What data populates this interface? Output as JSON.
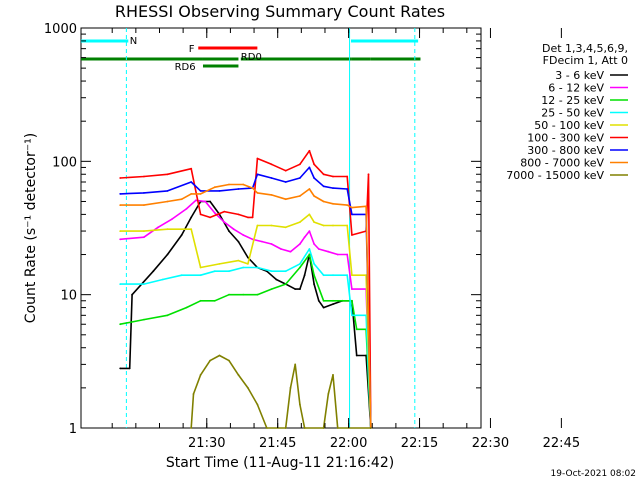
{
  "chart_data": {
    "type": "line",
    "title": "RHESSI Observing Summary Count Rates",
    "xlabel": "Start Time (11-Aug-11 21:16:42)",
    "ylabel": "Count Rate (s⁻¹ detector⁻¹)",
    "yscale": "log",
    "ylim": [
      1,
      1000
    ],
    "xlim_minutes": [
      -13.3,
      71.3
    ],
    "x_tick_labels": [
      "21:30",
      "21:45",
      "22:00",
      "22:15",
      "22:30",
      "22:45"
    ],
    "y_tick_labels": [
      "1",
      "10",
      "100",
      "1000"
    ],
    "timestamp": "19-Oct-2021 08:02",
    "legend": {
      "position": "top-right",
      "header": [
        "Det 1,3,4,5,6,9,",
        "FDecim 1, Att 0"
      ],
      "entries": [
        {
          "label": "3 - 6 keV",
          "color": "#000000"
        },
        {
          "label": "6 - 12 keV",
          "color": "#ff00ff"
        },
        {
          "label": "12 - 25 keV",
          "color": "#00e000"
        },
        {
          "label": "25 - 50 keV",
          "color": "#00ffff"
        },
        {
          "label": "50 - 100 keV",
          "color": "#e0e000"
        },
        {
          "label": "100 - 300 keV",
          "color": "#ff0000"
        },
        {
          "label": "300 - 800 keV",
          "color": "#0000ff"
        },
        {
          "label": "800 - 7000 keV",
          "color": "#ff8000"
        },
        {
          "label": "7000 - 15000 keV",
          "color": "#808000"
        }
      ]
    },
    "annotations": {
      "night": {
        "label": "N",
        "color": "#00ffff",
        "segments": [
          [
            -13.3,
            -3.3
          ],
          [
            43.8,
            58.0
          ]
        ],
        "boundaries": [
          -3.7,
          43.5,
          57.3
        ]
      },
      "flare": {
        "label": "F",
        "color": "#ff0000",
        "segments": [
          [
            11.5,
            24.0
          ]
        ]
      },
      "rd0": {
        "label": "RD0",
        "color": "#008000",
        "segments": [
          [
            5.5,
            22.0
          ]
        ]
      },
      "rd6": {
        "label": "RD6",
        "color": "#008000",
        "segments": [
          [
            12.5,
            20.0
          ]
        ]
      },
      "saa": {
        "color": "#008000",
        "segments": [
          [
            -13.3,
            12.5
          ],
          [
            12.5,
            20.0
          ],
          [
            20.5,
            44.0
          ],
          [
            44.0,
            48.0
          ],
          [
            48.0,
            58.5
          ]
        ]
      }
    },
    "series": [
      {
        "name": "3 - 6 keV",
        "color": "#000000",
        "points": [
          [
            -13.3,
            null
          ],
          [
            -5,
            2.8
          ],
          [
            -3,
            2.8
          ],
          [
            -2.5,
            10
          ],
          [
            2,
            15
          ],
          [
            5,
            20
          ],
          [
            8,
            28
          ],
          [
            10,
            38
          ],
          [
            12,
            50
          ],
          [
            14,
            50
          ],
          [
            16,
            40
          ],
          [
            18,
            30
          ],
          [
            20,
            25
          ],
          [
            22,
            19
          ],
          [
            24,
            16
          ],
          [
            26,
            15
          ],
          [
            28,
            13
          ],
          [
            30,
            12
          ],
          [
            32,
            11
          ],
          [
            33,
            11
          ],
          [
            34,
            14
          ],
          [
            35,
            20
          ],
          [
            36,
            12
          ],
          [
            37,
            9
          ],
          [
            38,
            8
          ],
          [
            40,
            8.5
          ],
          [
            42,
            9
          ],
          [
            44,
            9
          ],
          [
            45,
            3.5
          ],
          [
            47,
            3.5
          ],
          [
            48,
            1
          ]
        ]
      },
      {
        "name": "6 - 12 keV",
        "color": "#ff00ff",
        "points": [
          [
            -5,
            26
          ],
          [
            0,
            27
          ],
          [
            3,
            32
          ],
          [
            6,
            37
          ],
          [
            9,
            44
          ],
          [
            11,
            51
          ],
          [
            13,
            50
          ],
          [
            15,
            41
          ],
          [
            17,
            35
          ],
          [
            19,
            31
          ],
          [
            21,
            28
          ],
          [
            23,
            26
          ],
          [
            25,
            25
          ],
          [
            27,
            24
          ],
          [
            29,
            22
          ],
          [
            31,
            21
          ],
          [
            33,
            24
          ],
          [
            34,
            27
          ],
          [
            35,
            30
          ],
          [
            36,
            24
          ],
          [
            37,
            22
          ],
          [
            39,
            21
          ],
          [
            41,
            20
          ],
          [
            43,
            20
          ],
          [
            44,
            11
          ],
          [
            47,
            11
          ],
          [
            48,
            1
          ]
        ]
      },
      {
        "name": "12 - 25 keV",
        "color": "#00e000",
        "points": [
          [
            -5,
            6
          ],
          [
            0,
            6.5
          ],
          [
            5,
            7
          ],
          [
            9,
            8
          ],
          [
            12,
            9
          ],
          [
            15,
            9
          ],
          [
            18,
            10
          ],
          [
            21,
            10
          ],
          [
            24,
            10
          ],
          [
            27,
            11
          ],
          [
            30,
            12
          ],
          [
            33,
            16
          ],
          [
            35,
            20
          ],
          [
            36,
            14
          ],
          [
            38,
            9
          ],
          [
            40,
            9
          ],
          [
            42,
            9
          ],
          [
            44,
            9
          ],
          [
            45,
            5.5
          ],
          [
            47,
            5.5
          ],
          [
            48,
            1
          ]
        ]
      },
      {
        "name": "25 - 50 keV",
        "color": "#00ffff",
        "points": [
          [
            -5,
            12
          ],
          [
            0,
            12
          ],
          [
            4,
            13
          ],
          [
            8,
            14
          ],
          [
            12,
            14
          ],
          [
            15,
            15
          ],
          [
            18,
            15
          ],
          [
            21,
            16
          ],
          [
            24,
            16
          ],
          [
            27,
            15
          ],
          [
            30,
            15
          ],
          [
            33,
            17
          ],
          [
            35,
            22
          ],
          [
            36,
            17
          ],
          [
            38,
            14
          ],
          [
            40,
            14
          ],
          [
            43,
            14
          ],
          [
            44,
            7
          ],
          [
            47,
            7
          ],
          [
            48,
            1
          ]
        ]
      },
      {
        "name": "50 - 100 keV",
        "color": "#e0e000",
        "points": [
          [
            -5,
            30
          ],
          [
            0,
            30
          ],
          [
            5,
            31
          ],
          [
            10,
            31
          ],
          [
            12,
            16
          ],
          [
            16,
            17
          ],
          [
            20,
            18
          ],
          [
            22,
            17
          ],
          [
            24,
            33
          ],
          [
            27,
            33
          ],
          [
            30,
            32
          ],
          [
            33,
            35
          ],
          [
            35,
            40
          ],
          [
            36,
            35
          ],
          [
            38,
            33
          ],
          [
            40,
            33
          ],
          [
            43,
            33
          ],
          [
            44,
            14
          ],
          [
            47,
            14
          ],
          [
            48,
            1
          ]
        ]
      },
      {
        "name": "100 - 300 keV",
        "color": "#ff0000",
        "points": [
          [
            -5,
            75
          ],
          [
            0,
            77
          ],
          [
            5,
            80
          ],
          [
            10,
            88
          ],
          [
            12,
            40
          ],
          [
            14,
            38
          ],
          [
            17,
            42
          ],
          [
            20,
            40
          ],
          [
            22,
            38
          ],
          [
            23,
            38
          ],
          [
            24,
            105
          ],
          [
            27,
            95
          ],
          [
            30,
            85
          ],
          [
            33,
            95
          ],
          [
            35,
            120
          ],
          [
            36,
            95
          ],
          [
            38,
            80
          ],
          [
            40,
            77
          ],
          [
            43,
            77
          ],
          [
            44,
            28
          ],
          [
            47,
            30
          ],
          [
            47.5,
            80
          ],
          [
            48,
            1
          ]
        ]
      },
      {
        "name": "300 - 800 keV",
        "color": "#0000ff",
        "points": [
          [
            -5,
            57
          ],
          [
            0,
            58
          ],
          [
            5,
            60
          ],
          [
            10,
            70
          ],
          [
            12,
            60
          ],
          [
            16,
            60
          ],
          [
            20,
            62
          ],
          [
            23,
            63
          ],
          [
            24,
            80
          ],
          [
            27,
            75
          ],
          [
            30,
            70
          ],
          [
            33,
            75
          ],
          [
            35,
            90
          ],
          [
            36,
            75
          ],
          [
            38,
            65
          ],
          [
            40,
            63
          ],
          [
            43,
            62
          ],
          [
            44,
            40
          ],
          [
            47,
            40
          ],
          [
            48,
            1
          ]
        ]
      },
      {
        "name": "800 - 7000 keV",
        "color": "#ff8000",
        "points": [
          [
            -5,
            47
          ],
          [
            0,
            47
          ],
          [
            5,
            50
          ],
          [
            8,
            52
          ],
          [
            10,
            57
          ],
          [
            12,
            57
          ],
          [
            15,
            64
          ],
          [
            18,
            67
          ],
          [
            21,
            67
          ],
          [
            23,
            63
          ],
          [
            24,
            58
          ],
          [
            27,
            56
          ],
          [
            30,
            52
          ],
          [
            33,
            55
          ],
          [
            35,
            62
          ],
          [
            36,
            55
          ],
          [
            38,
            50
          ],
          [
            40,
            48
          ],
          [
            43,
            47
          ],
          [
            44,
            45
          ],
          [
            47,
            46
          ],
          [
            48,
            1
          ]
        ]
      },
      {
        "name": "7000 - 15000 keV",
        "color": "#808000",
        "points": [
          [
            10,
            1
          ],
          [
            10.5,
            1.8
          ],
          [
            12,
            2.5
          ],
          [
            14,
            3.2
          ],
          [
            16,
            3.5
          ],
          [
            18,
            3.2
          ],
          [
            20,
            2.5
          ],
          [
            22,
            2
          ],
          [
            24,
            1.5
          ],
          [
            26,
            1
          ],
          [
            30,
            1
          ],
          [
            31,
            2
          ],
          [
            32,
            3
          ],
          [
            33,
            1.5
          ],
          [
            34,
            1
          ],
          [
            38,
            1
          ],
          [
            39,
            1.8
          ],
          [
            40,
            2.5
          ],
          [
            41,
            1
          ],
          [
            48,
            1
          ]
        ]
      }
    ]
  }
}
